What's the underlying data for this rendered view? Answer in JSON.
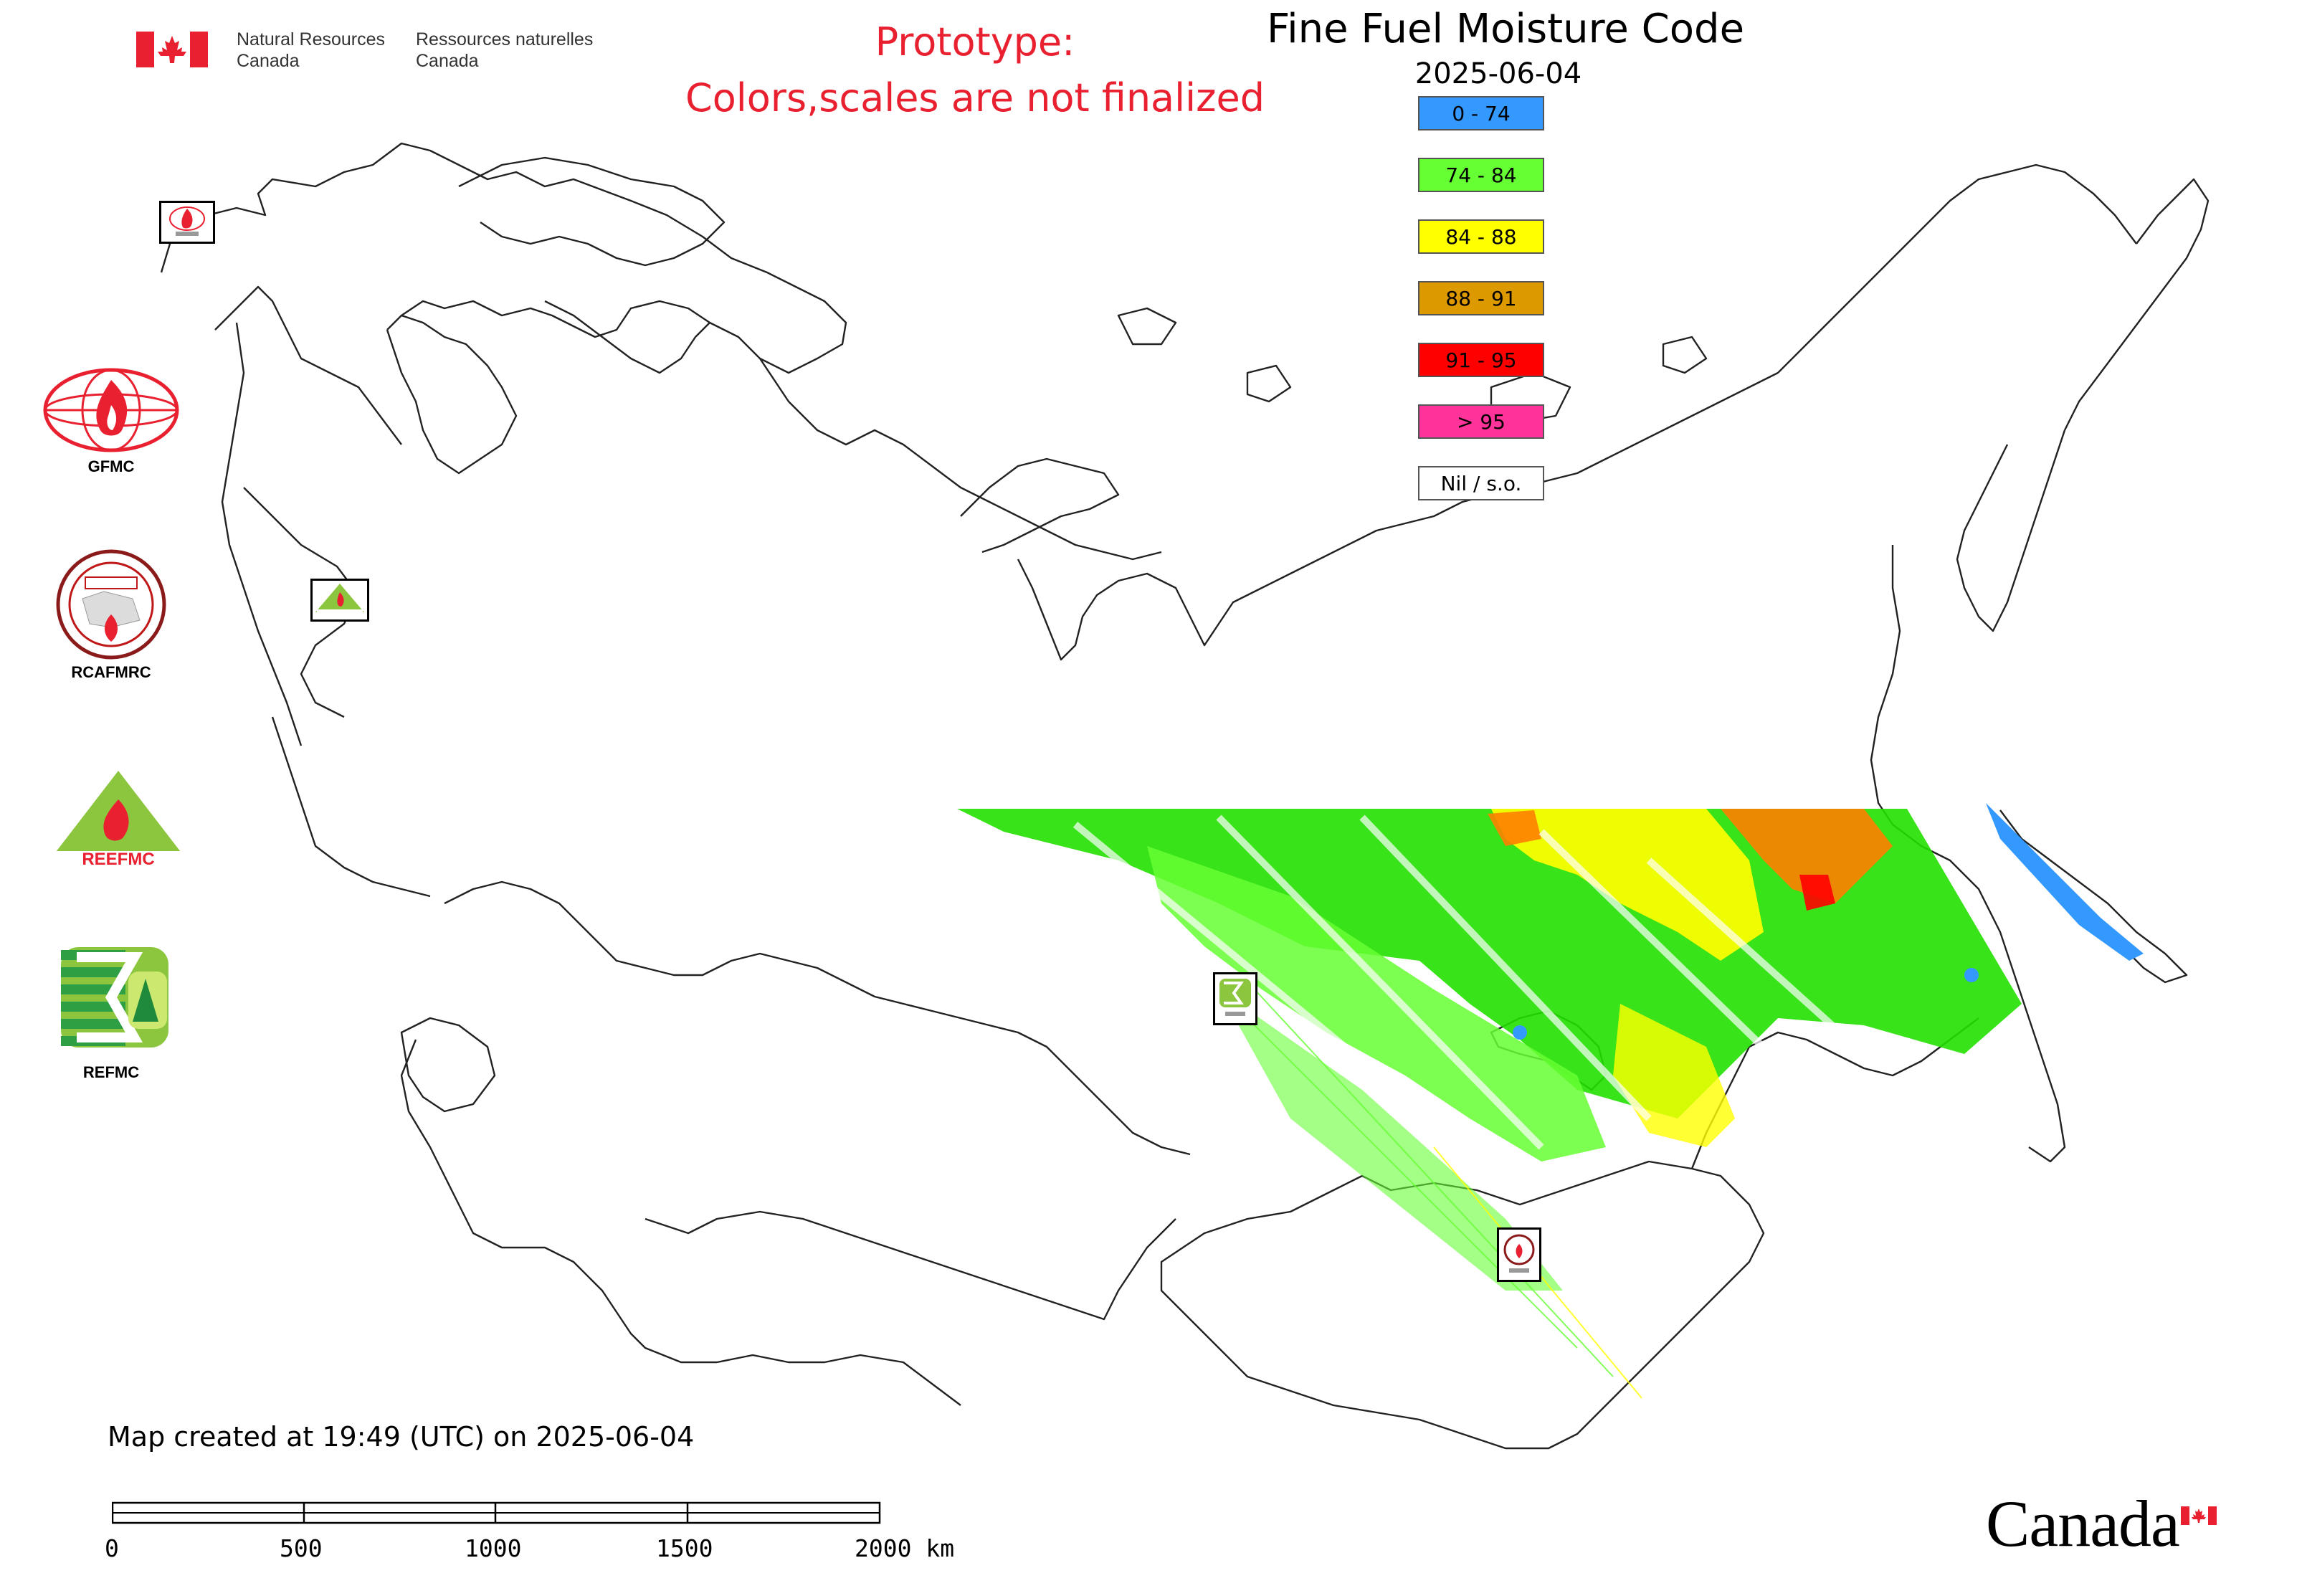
{
  "header": {
    "department_en_line1": "Natural Resources",
    "department_en_line2": "Canada",
    "department_fr_line1": "Ressources naturelles",
    "department_fr_line2": "Canada"
  },
  "prototype_note": {
    "line1": "Prototype:",
    "line2": "Colors,scales are not finalized",
    "color": "#e8202f"
  },
  "map": {
    "title": "Fine Fuel Moisture Code",
    "date": "2025-06-04",
    "legend": [
      {
        "label": "0 - 74",
        "color": "#3399ff"
      },
      {
        "label": "74 - 84",
        "color": "#66ff33"
      },
      {
        "label": "84 - 88",
        "color": "#ffff00"
      },
      {
        "label": "88 - 91",
        "color": "#dd9900"
      },
      {
        "label": "91 - 95",
        "color": "#ff0000"
      },
      {
        "label": "> 95",
        "color": "#ff3399"
      },
      {
        "label": "Nil / s.o.",
        "color": "#ffffff"
      }
    ],
    "data_field_colors": {
      "green": "#22e000",
      "light_green": "#66ff33",
      "yellow": "#ffff00",
      "orange": "#ff8000",
      "red": "#ff0000",
      "blue": "#3399ff"
    }
  },
  "agencies": [
    {
      "label": "GFMC",
      "icon": "gfmc-fire-globe-logo"
    },
    {
      "label": "RCAFMRC",
      "icon": "rcafmrc-seal-logo"
    },
    {
      "label": "",
      "icon": "reefmc-triangle-logo"
    },
    {
      "label": "REFMC",
      "icon": "refmc-sigma-logo"
    }
  ],
  "map_markers": [
    {
      "icon": "gfmc-marker-icon"
    },
    {
      "icon": "reefmc-marker-icon"
    },
    {
      "icon": "refmc-marker-icon"
    },
    {
      "icon": "rcafmrc-marker-icon"
    }
  ],
  "footer": {
    "created": "Map created at 19:49 (UTC) on 2025-06-04",
    "scale_labels": [
      "0",
      "500",
      "1000",
      "1500",
      "2000 km"
    ],
    "wordmark": "Canada"
  }
}
